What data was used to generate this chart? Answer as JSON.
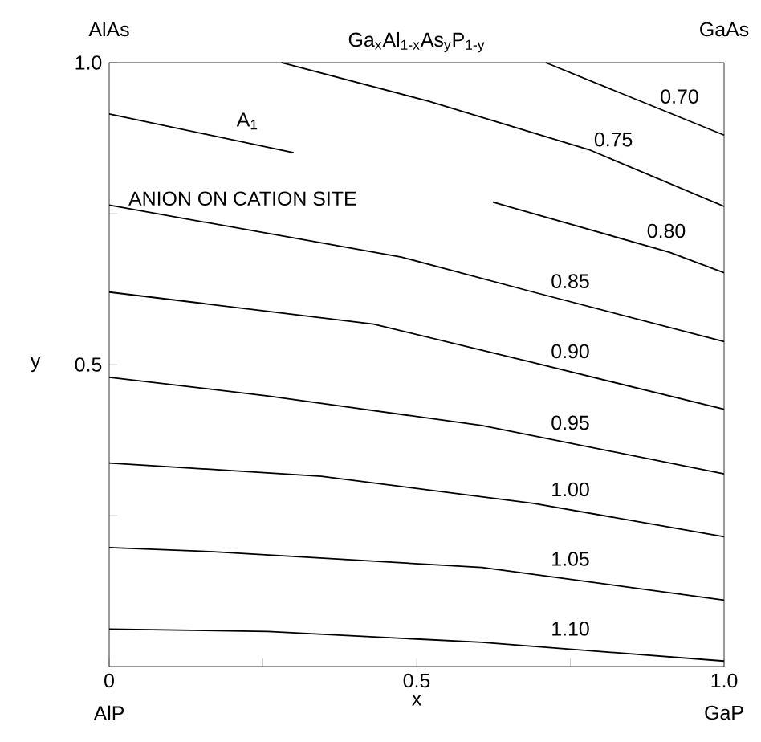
{
  "chart_data": {
    "type": "line",
    "title": "Ga$_{x}$Al$_{1-x}$As$_{y}$P$_{1-y}$",
    "xlabel": "x",
    "ylabel": "y",
    "xlim": [
      0,
      1
    ],
    "ylim": [
      0,
      1
    ],
    "xticks": [
      {
        "value": 0,
        "label": "0"
      },
      {
        "value": 0.25,
        "label": null
      },
      {
        "value": 0.5,
        "label": "0.5"
      },
      {
        "value": 0.75,
        "label": null
      },
      {
        "value": 1,
        "label": "1.0"
      }
    ],
    "yticks": [
      {
        "value": 0.25,
        "label": null
      },
      {
        "value": 0.5,
        "label": "0.5"
      },
      {
        "value": 0.75,
        "label": null
      },
      {
        "value": 1,
        "label": "1.0"
      }
    ],
    "line_style": "solid",
    "series": [
      {
        "name": "0.70",
        "color": "#000000",
        "x": [
          0.71,
          1.0
        ],
        "values": [
          1.0,
          0.88
        ]
      },
      {
        "name": "0.75",
        "color": "#000000",
        "x": [
          0.28,
          0.52,
          0.78,
          1.0
        ],
        "values": [
          1.0,
          0.936,
          0.856,
          0.762
        ]
      },
      {
        "name": "A$_{1}$",
        "color": "#000000",
        "x": [
          0,
          0.3
        ],
        "values": [
          0.915,
          0.851
        ]
      },
      {
        "name": "0.80",
        "color": "#000000",
        "x": [
          0.624,
          0.911,
          1.0
        ],
        "values": [
          0.769,
          0.686,
          0.652
        ]
      },
      {
        "name": "0.85",
        "color": "#000000",
        "x": [
          0,
          0.475,
          0.69,
          1.0
        ],
        "values": [
          0.764,
          0.678,
          0.62,
          0.538
        ]
      },
      {
        "name": "0.90",
        "color": "#000000",
        "x": [
          0,
          0.43,
          0.69,
          1.0
        ],
        "values": [
          0.62,
          0.567,
          0.503,
          0.426
        ]
      },
      {
        "name": "0.95",
        "color": "#000000",
        "x": [
          0,
          0.258,
          0.606,
          1.0
        ],
        "values": [
          0.479,
          0.448,
          0.399,
          0.319
        ]
      },
      {
        "name": "1.00",
        "color": "#000000",
        "x": [
          0,
          0.345,
          0.69,
          1.0
        ],
        "values": [
          0.337,
          0.315,
          0.27,
          0.215
        ]
      },
      {
        "name": "1.05",
        "color": "#000000",
        "x": [
          0,
          0.17,
          0.606,
          1.0
        ],
        "values": [
          0.197,
          0.19,
          0.164,
          0.11
        ]
      },
      {
        "name": "1.10",
        "color": "#000000",
        "x": [
          0,
          0.258,
          0.606,
          1.0
        ],
        "values": [
          0.062,
          0.058,
          0.04,
          0.009
        ]
      }
    ],
    "annotations": [
      "AlAs",
      "GaAs",
      "AlP",
      "GaP",
      "ANION ON CATION SITE"
    ]
  }
}
